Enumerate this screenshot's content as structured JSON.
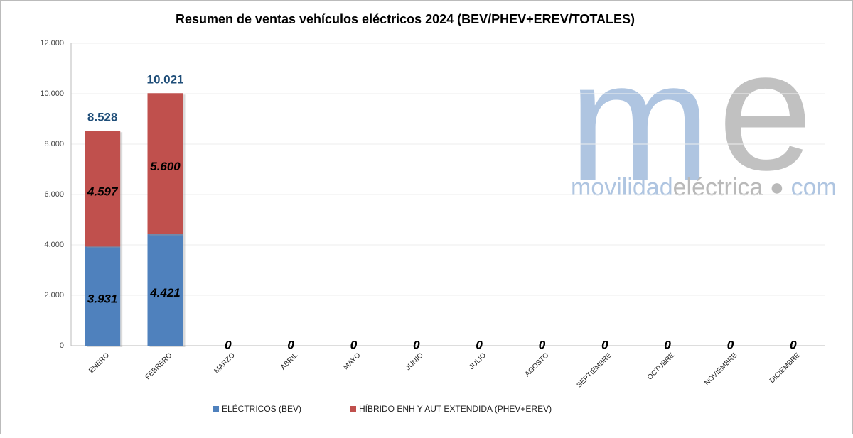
{
  "chart_data": {
    "type": "stacked_bar",
    "title": "Resumen de ventas vehículos eléctricos 2024 (BEV/PHEV+EREV/TOTALES)",
    "categories": [
      "ENERO",
      "FEBRERO",
      "MARZO",
      "ABRIL",
      "MAYO",
      "JUNIO",
      "JULIO",
      "AGOSTO",
      "SEPTIEMBRE",
      "OCTUBRE",
      "NOVIEMBRE",
      "DICIEMBRE"
    ],
    "series": [
      {
        "name": "ELÉCTRICOS (BEV)",
        "color": "#4f81bd",
        "values": [
          3931,
          4421,
          0,
          0,
          0,
          0,
          0,
          0,
          0,
          0,
          0,
          0
        ],
        "value_labels": [
          "3.931",
          "4.421",
          "0",
          "0",
          "0",
          "0",
          "0",
          "0",
          "0",
          "0",
          "0",
          "0"
        ]
      },
      {
        "name": "HÍBRIDO ENH Y AUT EXTENDIDA (PHEV+EREV)",
        "color": "#c0504d",
        "values": [
          4597,
          5600,
          0,
          0,
          0,
          0,
          0,
          0,
          0,
          0,
          0,
          0
        ],
        "value_labels": [
          "4.597",
          "5.600",
          "0",
          "0",
          "0",
          "0",
          "0",
          "0",
          "0",
          "0",
          "0",
          "0"
        ]
      }
    ],
    "totals": {
      "values": [
        8528,
        10021,
        null,
        null,
        null,
        null,
        null,
        null,
        null,
        null,
        null,
        null
      ],
      "value_labels": [
        "8.528",
        "10.021",
        null,
        null,
        null,
        null,
        null,
        null,
        null,
        null,
        null,
        null
      ]
    },
    "ylim": [
      0,
      12000
    ],
    "yticks": [
      0,
      {
        "value": 2000,
        "label": "2.000"
      },
      {
        "value": 4000,
        "label": "4.000"
      },
      {
        "value": 6000,
        "label": "6.000"
      },
      {
        "value": 8000,
        "label": "8.000"
      },
      {
        "value": 10000,
        "label": "10.000"
      },
      {
        "value": 12000,
        "label": "12.000"
      }
    ],
    "grid": true,
    "legend": "bottom",
    "watermark": {
      "logo_m": "m",
      "logo_e": "e",
      "parts": [
        "movilidad",
        "eléctrica",
        "com"
      ]
    }
  }
}
